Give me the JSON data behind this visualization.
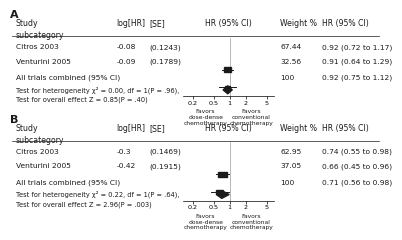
{
  "panel_A": {
    "label": "A",
    "studies": [
      {
        "name": "Citros 2003",
        "loghr": -0.08,
        "se": "(0.1243)",
        "weight": "67.44",
        "hr": 0.92,
        "ci_low": 0.72,
        "ci_high": 1.17,
        "hr_text": "0.92 (0.72 to 1.17)"
      },
      {
        "name": "Venturini 2005",
        "loghr": -0.09,
        "se": "(0.1789)",
        "weight": "32.56",
        "hr": 0.91,
        "ci_low": 0.64,
        "ci_high": 1.29,
        "hr_text": "0.91 (0.64 to 1.29)"
      }
    ],
    "combined": {
      "hr": 0.92,
      "ci_low": 0.75,
      "ci_high": 1.12,
      "weight": "100",
      "hr_text": "0.92 (0.75 to 1.12)"
    },
    "combined_label": "All trials combined (95% CI)",
    "het_text": "Test for heterogeneity χ² = 0.00, df = 1(P = .96),  I² = 0%",
    "effect_text": "Test for overall effect Z = 0.85(P = .40)",
    "xticks": [
      0.2,
      0.5,
      1,
      2,
      5
    ],
    "xlim": [
      0.13,
      7.0
    ],
    "favors_left": "Favors\ndose-dense\nchemotherapy",
    "favors_right": "Favors\nconventional\nchemotherapy"
  },
  "panel_B": {
    "label": "B",
    "studies": [
      {
        "name": "Citros 2003",
        "loghr": -0.3,
        "se": "(0.1469)",
        "weight": "62.95",
        "hr": 0.74,
        "ci_low": 0.55,
        "ci_high": 0.98,
        "hr_text": "0.74 (0.55 to 0.98)"
      },
      {
        "name": "Venturini 2005",
        "loghr": -0.42,
        "se": "(0.1915)",
        "weight": "37.05",
        "hr": 0.66,
        "ci_low": 0.45,
        "ci_high": 0.96,
        "hr_text": "0.66 (0.45 to 0.96)"
      }
    ],
    "combined": {
      "hr": 0.71,
      "ci_low": 0.56,
      "ci_high": 0.98,
      "weight": "100",
      "hr_text": "0.71 (0.56 to 0.98)"
    },
    "combined_label": "All trials combined (95% CI)",
    "het_text": "Test for heterogeneity χ² = 0.22, df = 1(P = .64),  I² = 0%",
    "effect_text": "Test for overall effect Z = 2.96(P = .003)",
    "xticks": [
      0.2,
      0.5,
      1,
      2,
      5
    ],
    "xlim": [
      0.13,
      7.0
    ],
    "favors_left": "Favors\ndose-dense\nchemotherapy",
    "favors_right": "Favors\nconventional\nchemotherapy"
  },
  "col_study": 0.01,
  "col_loghr": 0.285,
  "col_se": 0.375,
  "col_plot_l": 0.465,
  "col_plot_r": 0.715,
  "col_weight": 0.73,
  "col_hrtext": 0.845,
  "sq_color": "#1a1a1a",
  "line_color": "#1a1a1a",
  "text_color": "#1a1a1a",
  "fs": 5.4,
  "fs_hdr": 5.6,
  "fs_label": 8.0,
  "fs_small": 4.8
}
